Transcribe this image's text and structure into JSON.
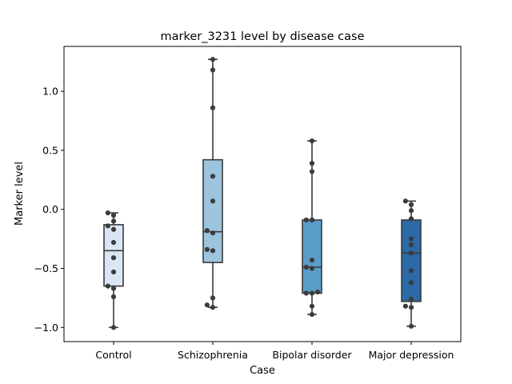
{
  "chart_data": {
    "type": "box",
    "title": "marker_3231 level by disease case",
    "xlabel": "Case",
    "ylabel": "Marker level",
    "categories": [
      "Control",
      "Schizophrenia",
      "Bipolar disorder",
      "Major depression"
    ],
    "ylim": [
      -1.12,
      1.38
    ],
    "yticks": [
      -1.0,
      -0.5,
      0.0,
      0.5,
      1.0
    ],
    "ytick_labels": [
      "−1.0",
      "−0.5",
      "0.0",
      "0.5",
      "1.0"
    ],
    "grid": false,
    "boxes": [
      {
        "category": "Control",
        "min": -1.0,
        "q1": -0.65,
        "median": -0.35,
        "q3": -0.13,
        "max": -0.03,
        "color": "#dae6f3"
      },
      {
        "category": "Schizophrenia",
        "min": -0.83,
        "q1": -0.45,
        "median": -0.19,
        "q3": 0.42,
        "max": 1.27,
        "color": "#9dc4de"
      },
      {
        "category": "Bipolar disorder",
        "min": -0.89,
        "q1": -0.71,
        "median": -0.49,
        "q3": -0.09,
        "max": 0.58,
        "color": "#5b9dc9"
      },
      {
        "category": "Major depression",
        "min": -0.99,
        "q1": -0.78,
        "median": -0.37,
        "q3": -0.09,
        "max": 0.07,
        "color": "#2b6aa7"
      }
    ],
    "points": [
      {
        "category": "Control",
        "values": [
          -1.0,
          -0.74,
          -0.67,
          -0.65,
          -0.53,
          -0.41,
          -0.28,
          -0.17,
          -0.14,
          -0.1,
          -0.05,
          -0.03
        ]
      },
      {
        "category": "Schizophrenia",
        "values": [
          -0.83,
          -0.81,
          -0.75,
          -0.35,
          -0.34,
          -0.2,
          -0.18,
          0.07,
          0.28,
          0.86,
          1.18,
          1.27
        ]
      },
      {
        "category": "Bipolar disorder",
        "values": [
          -0.89,
          -0.82,
          -0.71,
          -0.71,
          -0.7,
          -0.5,
          -0.49,
          -0.43,
          -0.09,
          -0.09,
          0.32,
          0.39,
          0.58
        ]
      },
      {
        "category": "Major depression",
        "values": [
          -0.99,
          -0.83,
          -0.82,
          -0.76,
          -0.62,
          -0.52,
          -0.37,
          -0.3,
          -0.25,
          -0.08,
          -0.01,
          0.04,
          0.07
        ]
      }
    ],
    "colors": {
      "box_edge": "#3a3a3a",
      "point": "#3c3c3c"
    }
  }
}
